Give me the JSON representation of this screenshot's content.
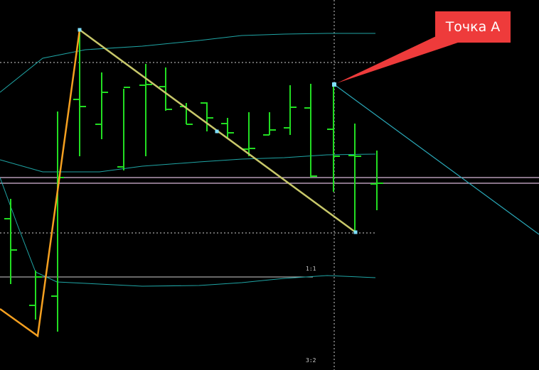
{
  "chart_data": {
    "type": "ohlc",
    "title": "",
    "xlabel": "",
    "ylabel": "",
    "grid": false,
    "ylim": [
      0,
      520
    ],
    "colors": {
      "background": "#000000",
      "bars": "#22dd22",
      "envelope": "#1fa5a5",
      "zigzag_up": "#f5a020",
      "zigzag_down": "#c8c86a",
      "level": "#d8b8d8",
      "trend_line": "#2aa8b8",
      "dotted": "#cfcfcf",
      "callout": "#ee3b3b",
      "markers": "#7fe0ff"
    },
    "bars": [
      {
        "x": 15,
        "open": 212,
        "high": 240,
        "low": 120,
        "close": 168
      },
      {
        "x": 50,
        "open": 90,
        "high": 139,
        "low": 70,
        "close": 130
      },
      {
        "x": 81,
        "open": 103,
        "high": 363,
        "low": 53,
        "close": 270
      },
      {
        "x": 112,
        "open": 380,
        "high": 476,
        "low": 300,
        "close": 370
      },
      {
        "x": 143,
        "open": 345,
        "high": 418,
        "low": 324,
        "close": 390
      },
      {
        "x": 174,
        "open": 285,
        "high": 395,
        "low": 280,
        "close": 397
      },
      {
        "x": 205,
        "open": 400,
        "high": 430,
        "low": 300,
        "close": 401
      },
      {
        "x": 233,
        "open": 398,
        "high": 425,
        "low": 364,
        "close": 366
      },
      {
        "x": 262,
        "open": 370,
        "high": 375,
        "low": 345,
        "close": 345
      },
      {
        "x": 291,
        "open": 375,
        "high": 376,
        "low": 335,
        "close": 354
      },
      {
        "x": 320,
        "open": 346,
        "high": 354,
        "low": 325,
        "close": 333
      },
      {
        "x": 350,
        "open": 310,
        "high": 362,
        "low": 300,
        "close": 311
      },
      {
        "x": 379,
        "open": 330,
        "high": 362,
        "low": 330,
        "close": 337
      },
      {
        "x": 408,
        "open": 340,
        "high": 400,
        "low": 330,
        "close": 369
      },
      {
        "x": 437,
        "open": 368,
        "high": 402,
        "low": 270,
        "close": 272
      },
      {
        "x": 469,
        "open": 338,
        "high": 400,
        "low": 250,
        "close": 300
      },
      {
        "x": 499,
        "open": 301,
        "high": 346,
        "low": 192,
        "close": 300
      },
      {
        "x": 530,
        "open": 261,
        "high": 308,
        "low": 224,
        "close": 262
      }
    ],
    "envelope_upper": [
      [
        0,
        390
      ],
      [
        60,
        438
      ],
      [
        120,
        450
      ],
      [
        200,
        455
      ],
      [
        280,
        463
      ],
      [
        340,
        470
      ],
      [
        400,
        472
      ],
      [
        460,
        473
      ],
      [
        528,
        473
      ]
    ],
    "envelope_middle": [
      [
        0,
        295
      ],
      [
        60,
        278
      ],
      [
        140,
        278
      ],
      [
        200,
        286
      ],
      [
        280,
        292
      ],
      [
        340,
        296
      ],
      [
        400,
        298
      ],
      [
        460,
        302
      ],
      [
        528,
        303
      ]
    ],
    "envelope_lower": [
      [
        0,
        270
      ],
      [
        25,
        202
      ],
      [
        50,
        137
      ],
      [
        80,
        123
      ],
      [
        140,
        120
      ],
      [
        200,
        117
      ],
      [
        280,
        118
      ],
      [
        340,
        122
      ],
      [
        400,
        128
      ],
      [
        460,
        132
      ],
      [
        528,
        129
      ]
    ],
    "zigzag": [
      [
        0,
        85
      ],
      [
        53,
        47
      ],
      [
        112,
        478
      ],
      [
        500,
        193
      ]
    ],
    "zigzag_nodes": [
      [
        112,
        478
      ],
      [
        305,
        335
      ],
      [
        500,
        193
      ]
    ],
    "trend_line": [
      [
        470,
        401
      ],
      [
        758,
        190
      ]
    ],
    "point_a": [
      470,
      401
    ],
    "level_lines": [
      270,
      262
    ],
    "dotted_h": [
      [
        0,
        528,
        432
      ],
      [
        0,
        528,
        192
      ]
    ],
    "dotted_v": [
      470
    ],
    "solid_h": [
      [
        0,
        440,
        130
      ]
    ],
    "ratio_labels": [
      {
        "text": "1:1",
        "x": 430,
        "y": 136
      },
      {
        "text": "3:2",
        "x": 430,
        "y": 7
      }
    ],
    "callout_text": "Точка A"
  }
}
